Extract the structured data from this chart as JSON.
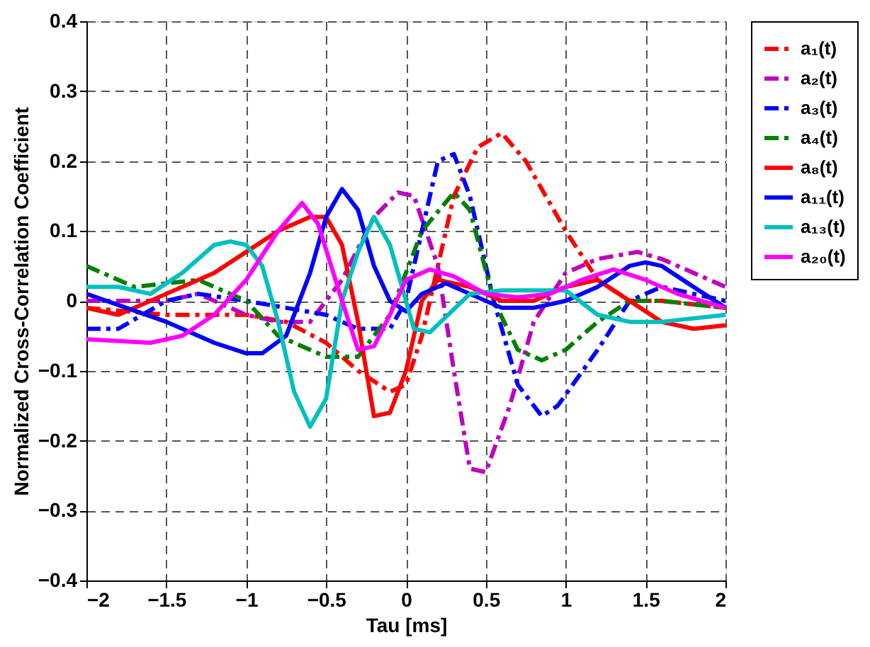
{
  "chart_data": {
    "type": "line",
    "xlabel": "Tau [ms]",
    "ylabel": "Normalized Cross-Correlation Coefficient",
    "xlim": [
      -2,
      2
    ],
    "xticks": [
      -2,
      -1.5,
      -1,
      -0.5,
      0,
      0.5,
      1,
      1.5,
      2
    ],
    "ylim": [
      -0.4,
      0.4
    ],
    "yticks": [
      -0.4,
      -0.3,
      -0.2,
      -0.1,
      0,
      0.1,
      0.2,
      0.3,
      0.4
    ],
    "grid": true,
    "legend": "top right",
    "series": [
      {
        "name": "a₁(t)",
        "color": "#ff0000",
        "line_style": "dashed",
        "x": [
          -2,
          -1.5,
          -1,
          -0.75,
          -0.5,
          -0.3,
          -0.1,
          0,
          0.1,
          0.2,
          0.3,
          0.45,
          0.6,
          0.75,
          1,
          1.2,
          1.4,
          1.6,
          2
        ],
        "values": [
          -0.01,
          -0.02,
          -0.02,
          -0.03,
          -0.06,
          -0.1,
          -0.13,
          -0.12,
          -0.05,
          0.05,
          0.15,
          0.22,
          0.24,
          0.2,
          0.1,
          0.03,
          0.0,
          0.0,
          -0.01
        ]
      },
      {
        "name": "a₂(t)",
        "color": "#bf00bf",
        "line_style": "dashed",
        "x": [
          -2,
          -1.5,
          -1.3,
          -1,
          -0.8,
          -0.6,
          -0.4,
          -0.2,
          -0.05,
          0.05,
          0.2,
          0.3,
          0.4,
          0.5,
          0.65,
          0.8,
          1,
          1.2,
          1.45,
          1.6,
          2
        ],
        "values": [
          0.0,
          0.0,
          0.01,
          -0.02,
          -0.03,
          -0.03,
          0.03,
          0.12,
          0.155,
          0.15,
          0.05,
          -0.1,
          -0.24,
          -0.245,
          -0.15,
          -0.03,
          0.04,
          0.06,
          0.07,
          0.06,
          0.02
        ]
      },
      {
        "name": "a₃(t)",
        "color": "#0000ff",
        "line_style": "dashed",
        "x": [
          -2,
          -1.8,
          -1.5,
          -1.3,
          -1,
          -0.5,
          -0.3,
          -0.1,
          0,
          0.1,
          0.2,
          0.3,
          0.4,
          0.55,
          0.7,
          0.85,
          0.95,
          1.2,
          1.4,
          1.6,
          2
        ],
        "values": [
          -0.04,
          -0.04,
          0.0,
          0.01,
          0.0,
          -0.02,
          -0.04,
          -0.04,
          0.0,
          0.1,
          0.2,
          0.21,
          0.15,
          0.0,
          -0.12,
          -0.165,
          -0.15,
          -0.07,
          0.0,
          0.02,
          0.0
        ]
      },
      {
        "name": "a₄(t)",
        "color": "#008000",
        "line_style": "dashed",
        "x": [
          -2,
          -1.7,
          -1.3,
          -1,
          -0.8,
          -0.5,
          -0.3,
          -0.1,
          0.1,
          0.3,
          0.4,
          0.55,
          0.7,
          0.85,
          1,
          1.2,
          1.4,
          1.6,
          2
        ],
        "values": [
          0.05,
          0.02,
          0.03,
          0.0,
          -0.05,
          -0.08,
          -0.08,
          -0.02,
          0.1,
          0.155,
          0.13,
          0.0,
          -0.07,
          -0.085,
          -0.07,
          -0.03,
          0.0,
          0.0,
          -0.01
        ]
      },
      {
        "name": "a₈(t)",
        "color": "#ff0000",
        "line_style": "solid",
        "x": [
          -2,
          -1.8,
          -1.5,
          -1.2,
          -1,
          -0.8,
          -0.6,
          -0.5,
          -0.4,
          -0.3,
          -0.2,
          -0.1,
          0,
          0.1,
          0.2,
          0.4,
          0.6,
          0.8,
          1,
          1.2,
          1.4,
          1.6,
          1.8,
          2
        ],
        "values": [
          -0.01,
          -0.02,
          0.01,
          0.04,
          0.07,
          0.1,
          0.12,
          0.12,
          0.08,
          -0.03,
          -0.165,
          -0.16,
          -0.1,
          0.0,
          0.03,
          0.02,
          0.0,
          0.0,
          0.02,
          0.03,
          0.0,
          -0.03,
          -0.04,
          -0.035
        ]
      },
      {
        "name": "a₁₁(t)",
        "color": "#0000ff",
        "line_style": "solid",
        "x": [
          -2,
          -1.5,
          -1.2,
          -1,
          -0.9,
          -0.75,
          -0.6,
          -0.5,
          -0.4,
          -0.3,
          -0.2,
          -0.1,
          0,
          0.1,
          0.25,
          0.4,
          0.6,
          0.8,
          1,
          1.2,
          1.4,
          1.5,
          1.6,
          2
        ],
        "values": [
          0.01,
          -0.03,
          -0.06,
          -0.075,
          -0.075,
          -0.05,
          0.04,
          0.12,
          0.16,
          0.13,
          0.05,
          0.0,
          -0.015,
          0.01,
          0.025,
          0.01,
          -0.01,
          -0.01,
          0.0,
          0.02,
          0.05,
          0.055,
          0.05,
          -0.01
        ]
      },
      {
        "name": "a₁₃(t)",
        "color": "#00bfbf",
        "line_style": "solid",
        "x": [
          -2,
          -1.8,
          -1.6,
          -1.4,
          -1.2,
          -1.1,
          -1,
          -0.9,
          -0.8,
          -0.7,
          -0.6,
          -0.5,
          -0.4,
          -0.3,
          -0.2,
          -0.1,
          0,
          0.05,
          0.15,
          0.4,
          0.6,
          0.8,
          1,
          1.2,
          1.4,
          1.6,
          2
        ],
        "values": [
          0.02,
          0.02,
          0.01,
          0.04,
          0.08,
          0.085,
          0.08,
          0.05,
          -0.03,
          -0.13,
          -0.18,
          -0.14,
          0.0,
          0.07,
          0.12,
          0.08,
          0.0,
          -0.04,
          -0.045,
          0.01,
          0.015,
          0.015,
          0.015,
          -0.02,
          -0.03,
          -0.03,
          -0.02
        ]
      },
      {
        "name": "a₂₀(t)",
        "color": "#ff00ff",
        "line_style": "solid",
        "x": [
          -2,
          -1.6,
          -1.4,
          -1.2,
          -1,
          -0.8,
          -0.65,
          -0.55,
          -0.4,
          -0.3,
          -0.2,
          -0.1,
          0,
          0.15,
          0.3,
          0.5,
          0.7,
          0.9,
          1.1,
          1.3,
          1.5,
          1.7,
          2
        ],
        "values": [
          -0.055,
          -0.06,
          -0.05,
          -0.02,
          0.03,
          0.1,
          0.14,
          0.11,
          0.0,
          -0.07,
          -0.065,
          -0.02,
          0.03,
          0.045,
          0.035,
          0.01,
          0.005,
          0.01,
          0.03,
          0.045,
          0.03,
          0.01,
          -0.01
        ]
      }
    ]
  }
}
